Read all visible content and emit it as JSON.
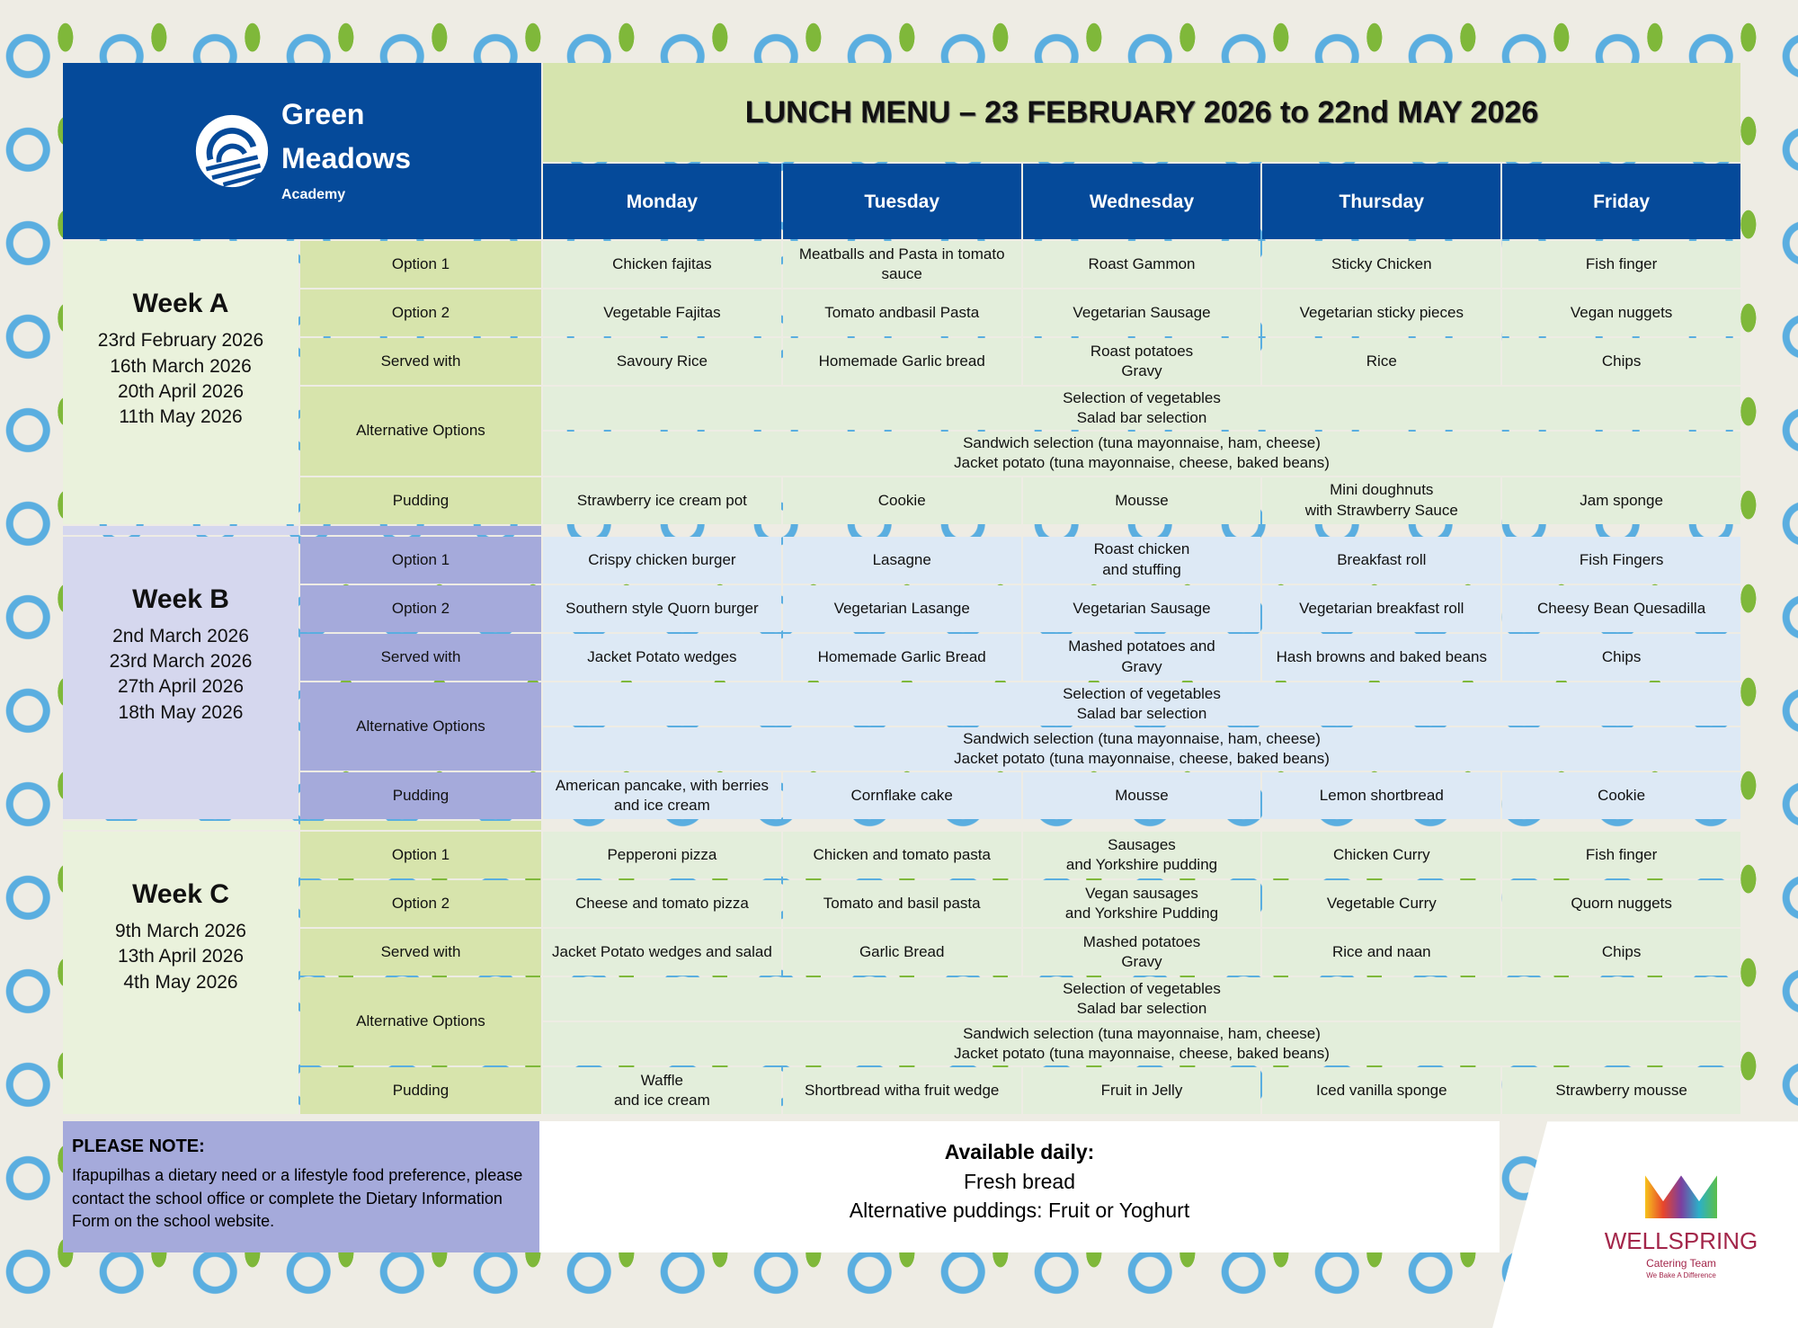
{
  "logo": {
    "line1": "Green",
    "line2": "Meadows",
    "line3": "Academy"
  },
  "title": "LUNCH MENU – 23 FEBRUARY 2026 to 22nd MAY 2026",
  "days": [
    "Monday",
    "Tuesday",
    "Wednesday",
    "Thursday",
    "Friday"
  ],
  "row_labels": {
    "option1": "Option 1",
    "option2": "Option 2",
    "served": "Served with",
    "alternatives": "Alternative Options",
    "pudding": "Pudding"
  },
  "weeks": [
    {
      "name": "Week A",
      "dates": [
        "23rd February 2026",
        "16th March 2026",
        "20th April 2026",
        "11th May 2026"
      ],
      "option1": [
        "Chicken fajitas",
        "Meatballs and Pasta in tomato sauce",
        "Roast Gammon",
        "Sticky Chicken",
        "Fish finger"
      ],
      "option2": [
        "Vegetable Fajitas",
        "Tomato andbasil Pasta",
        "Vegetarian Sausage",
        "Vegetarian sticky pieces",
        "Vegan nuggets"
      ],
      "served": [
        "Savoury Rice",
        "Homemade Garlic bread",
        "Roast potatoes\nGravy",
        "Rice",
        "Chips"
      ],
      "alternatives": [
        "Selection of vegetables\nSalad bar selection",
        "Sandwich selection (tuna mayonnaise, ham, cheese)\nJacket potato (tuna mayonnaise, cheese, baked beans)"
      ],
      "pudding": [
        "Strawberry ice cream pot",
        "Cookie",
        "Mousse",
        "Mini doughnuts\nwith Strawberry Sauce",
        "Jam sponge"
      ]
    },
    {
      "name": "Week B",
      "dates": [
        "2nd March 2026",
        "23rd March 2026",
        "27th April 2026",
        "18th May 2026"
      ],
      "option1": [
        "Crispy chicken burger",
        "Lasagne",
        "Roast chicken\nand stuffing",
        "Breakfast roll",
        "Fish Fingers"
      ],
      "option2": [
        "Southern style Quorn burger",
        "Vegetarian Lasange",
        "Vegetarian Sausage",
        "Vegetarian breakfast roll",
        "Cheesy Bean Quesadilla"
      ],
      "served": [
        "Jacket Potato wedges",
        "Homemade Garlic Bread",
        "Mashed potatoes and\nGravy",
        "Hash browns and baked beans",
        "Chips"
      ],
      "alternatives": [
        "Selection of vegetables\nSalad bar selection",
        "Sandwich selection (tuna mayonnaise, ham, cheese)\nJacket potato (tuna mayonnaise, cheese, baked beans)"
      ],
      "pudding": [
        "American pancake, with berries and ice cream",
        "Cornflake cake",
        "Mousse",
        "Lemon shortbread",
        "Cookie"
      ]
    },
    {
      "name": "Week C",
      "dates": [
        "9th March 2026",
        "13th April 2026",
        "4th May 2026"
      ],
      "option1": [
        "Pepperoni pizza",
        "Chicken and tomato pasta",
        "Sausages\nand Yorkshire pudding",
        "Chicken Curry",
        "Fish finger"
      ],
      "option2": [
        "Cheese and tomato pizza",
        "Tomato and basil pasta",
        "Vegan sausages\nand Yorkshire Pudding",
        "Vegetable Curry",
        "Quorn nuggets"
      ],
      "served": [
        "Jacket Potato wedges and salad",
        "Garlic Bread",
        "Mashed potatoes\nGravy",
        "Rice and naan",
        "Chips"
      ],
      "alternatives": [
        "Selection of vegetables\nSalad bar selection",
        "Sandwich selection (tuna mayonnaise, ham, cheese)\nJacket potato (tuna mayonnaise, cheese, baked beans)"
      ],
      "pudding": [
        "Waffle\nand ice cream",
        "Shortbread witha fruit wedge",
        "Fruit in Jelly",
        "Iced vanilla sponge",
        "Strawberry mousse"
      ]
    }
  ],
  "notes": {
    "heading": "PLEASE NOTE:",
    "text": "Ifapupilhas a dietary need or a lifestyle food preference, please contact the school office or complete the Dietary Information Form on the school website."
  },
  "daily": {
    "heading": "Available daily:",
    "line1": "Fresh bread",
    "line2": "Alternative puddings: Fruit or Yoghurt"
  },
  "caterer": {
    "name": "WELLSPRING",
    "sub": "Catering Team",
    "tagline": "We Bake A Difference"
  }
}
